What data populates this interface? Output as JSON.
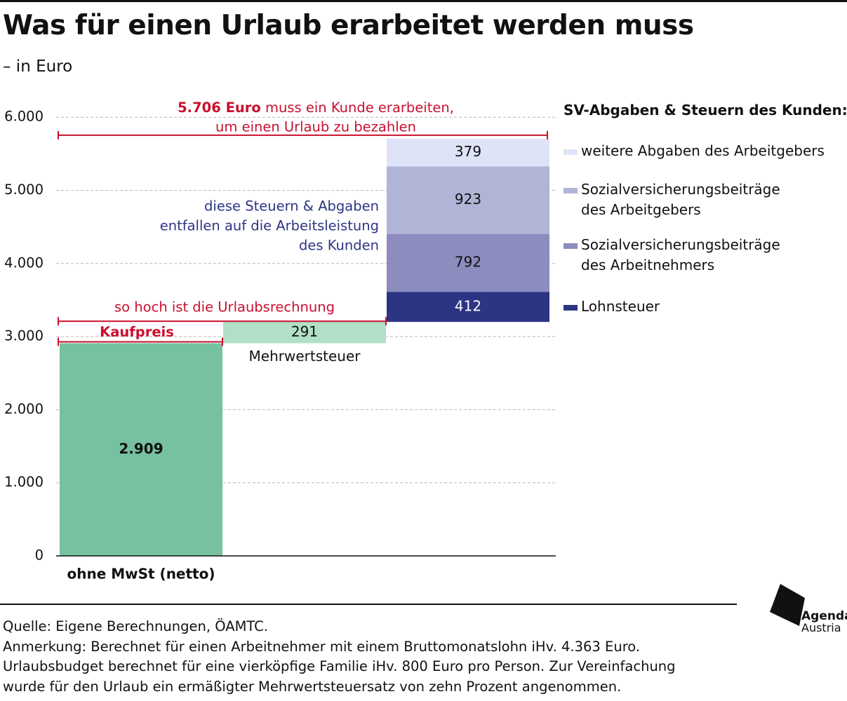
{
  "header": {
    "title": "Was für einen Urlaub erarbeitet werden muss",
    "subtitle": "– in Euro"
  },
  "chart_data": {
    "type": "bar",
    "title": "Was für einen Urlaub erarbeitet werden muss",
    "subtitle": "– in Euro",
    "ylim": [
      0,
      6000
    ],
    "yticks": [
      "0",
      "1.000",
      "2.000",
      "3.000",
      "4.000",
      "5.000",
      "6.000"
    ],
    "grid": true,
    "categories": [
      "ohne MwSt (netto)",
      "Mehrwertsteuer",
      ""
    ],
    "bars": [
      {
        "category": "ohne MwSt (netto)",
        "base": 0,
        "value": 2909,
        "label": "2.909",
        "color": "#76c1a0"
      },
      {
        "category": "Mehrwertsteuer",
        "base": 2909,
        "value": 291,
        "label": "291",
        "color": "#b2dfc7"
      }
    ],
    "stack": {
      "base": 3200,
      "segments": [
        {
          "name": "Lohnsteuer",
          "value": 412,
          "label": "412",
          "color": "#2c3484",
          "label_color": "#ffffff"
        },
        {
          "name": "Sozialversicherungsbeiträge des Arbeitnehmers",
          "value": 792,
          "label": "792",
          "color": "#8d8cbf",
          "label_color": "#111111"
        },
        {
          "name": "Sozialversicherungsbeiträge des Arbeitgebers",
          "value": 923,
          "label": "923",
          "color": "#b0b4d6",
          "label_color": "#111111"
        },
        {
          "name": "weitere Abgaben des Arbeitgebers",
          "value": 379,
          "label": "379",
          "color": "#dfe3f7",
          "label_color": "#111111"
        }
      ]
    },
    "annotations": {
      "total_bold": "5.706 Euro",
      "total_rest": " muss ein Kunde erarbeiten,",
      "total_line2": "um einen Urlaub zu bezahlen",
      "invoice": "so hoch ist die Urlaubsrechnung",
      "purchase": "Kaufpreis",
      "taxes_note": [
        "diese Steuern & Abgaben",
        "entfallen auf die Arbeitsleistung",
        "des Kunden"
      ],
      "accent_color": "#c8102e",
      "note_color": "#2c3484"
    },
    "legend": {
      "title": "SV-Abgaben & Steuern des Kunden:",
      "position": "right",
      "items": [
        {
          "label": "weitere Abgaben des Arbeitgebers",
          "color": "#dfe3f7"
        },
        {
          "label": "Sozialversicherungsbeiträge\ndes Arbeitgebers",
          "color": "#b0b4d6"
        },
        {
          "label": "Sozialversicherungsbeiträge\ndes Arbeitnehmers",
          "color": "#8d8cbf"
        },
        {
          "label": "Lohnsteuer",
          "color": "#2c3484"
        }
      ]
    }
  },
  "footer": {
    "source": "Quelle: Eigene Berechnungen, ÖAMTC.",
    "note_lines": [
      "Anmerkung: Berechnet für einen Arbeitnehmer mit einem Bruttomonatslohn iHv. 4.363 Euro.",
      "Urlaubsbudget berechnet für eine vierköpfige Familie iHv. 800 Euro pro Person. Zur Vereinfachung",
      "wurde für den Urlaub ein ermäßigter Mehrwertsteuersatz von zehn Prozent angenommen."
    ]
  },
  "logo": {
    "name": "Agenda",
    "sub": "Austria"
  }
}
